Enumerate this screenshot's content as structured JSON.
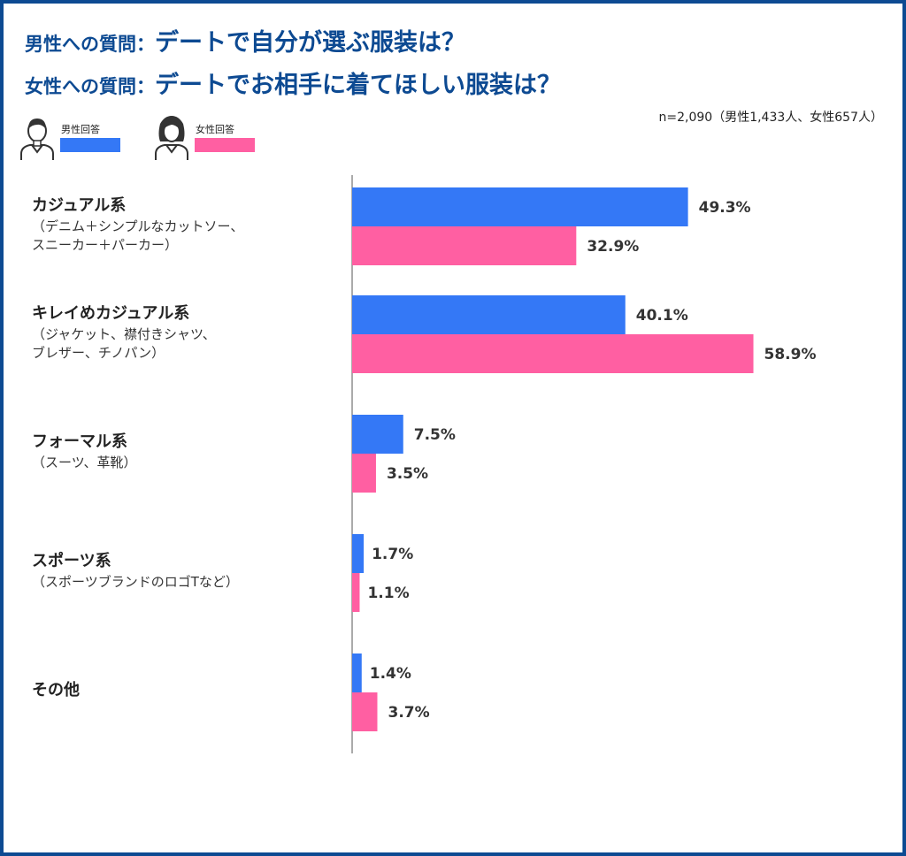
{
  "titles": {
    "line1_prefix": "男性への質問：",
    "line1_main": "デートで自分が選ぶ服装は？",
    "line2_prefix": "女性への質問：",
    "line2_main": "デートでお相手に着てほしい服装は？"
  },
  "sample_note": "n=2,090（男性1,433人、女性657人）",
  "colors": {
    "male": "#3478f6",
    "female": "#ff5fa2",
    "frame": "#0d4a92",
    "title": "#0d4a92"
  },
  "legend": [
    {
      "label": "男性回答",
      "color": "#3478f6",
      "icon": "male-person-icon"
    },
    {
      "label": "女性回答",
      "color": "#ff5fa2",
      "icon": "female-person-icon"
    }
  ],
  "categories_text": [
    {
      "name": "カジュアル系",
      "sub": [
        "（デニム＋シンプルなカットソー、",
        "スニーカー＋パーカー）"
      ]
    },
    {
      "name": "キレイめカジュアル系",
      "sub": [
        "（ジャケット、襟付きシャツ、",
        "ブレザー、チノパン）"
      ]
    },
    {
      "name": "フォーマル系",
      "sub": [
        "（スーツ、革靴）"
      ]
    },
    {
      "name": "スポーツ系",
      "sub": [
        "（スポーツブランドのロゴTなど）"
      ]
    },
    {
      "name": "その他",
      "sub": []
    }
  ],
  "chart_data": {
    "type": "bar",
    "orientation": "horizontal",
    "categories": [
      "カジュアル系",
      "キレイめカジュアル系",
      "フォーマル系",
      "スポーツ系",
      "その他"
    ],
    "series": [
      {
        "name": "男性回答",
        "values": [
          49.3,
          40.1,
          7.5,
          1.7,
          1.4
        ],
        "labels": [
          "49.3%",
          "40.1%",
          "7.5%",
          "1.7%",
          "1.4%"
        ]
      },
      {
        "name": "女性回答",
        "values": [
          32.9,
          58.9,
          3.5,
          1.1,
          3.7
        ],
        "labels": [
          "32.9%",
          "58.9%",
          "3.5%",
          "1.1%",
          "3.7%"
        ]
      }
    ],
    "unit": "%",
    "xlim": [
      0,
      60
    ],
    "grid": false,
    "legend_position": "top-left"
  }
}
